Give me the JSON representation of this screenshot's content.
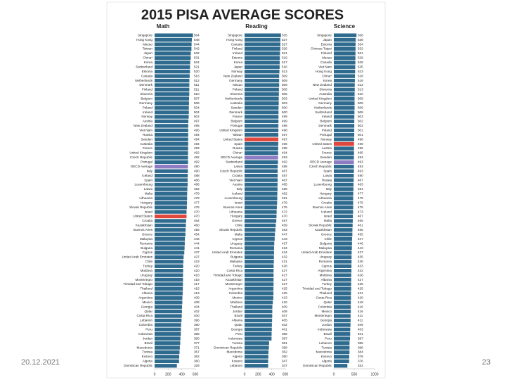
{
  "title": "2015 PISA AVERAGE SCORES",
  "date": "20.12.2021",
  "page_number": "23",
  "chart_data": [
    {
      "type": "bar",
      "orientation": "horizontal",
      "title": "Math",
      "categories": [
        "Singapore",
        "Hong Kong",
        "Macao",
        "Taiwan",
        "Japan",
        "China*",
        "Korea",
        "Switzerland",
        "Estonia",
        "Canada",
        "Netherlands",
        "Denmark",
        "Finland",
        "Slovenia",
        "Belgium",
        "Germany",
        "Poland",
        "Ireland",
        "Norway",
        "Austria",
        "New Zealand",
        "Viet Nam",
        "Russia",
        "Sweden",
        "Australia",
        "France",
        "United Kingdom",
        "Czech Republic",
        "Portugal",
        "OECD Average",
        "Italy",
        "Iceland",
        "Spain",
        "Luxembourg",
        "Latvia",
        "Malta",
        "Lithuania",
        "Hungary",
        "Slovak Republic",
        "Israel",
        "United States",
        "Croatia",
        "Kazakhstan",
        "Buenos Aires",
        "Greece",
        "Malaysia",
        "Romania",
        "Bulgaria",
        "Cyprus",
        "United Arab Emirates",
        "Chile",
        "Turkey",
        "Moldova",
        "Uruguay",
        "Montenegro",
        "Trinidad and Tobago",
        "Thailand",
        "Albania",
        "Argentina",
        "Mexico",
        "Georgia",
        "Qatar",
        "Costa Rica",
        "Lebanon",
        "Colombia",
        "Peru",
        "Indonesia",
        "Jordan",
        "Brazil",
        "Macedonia",
        "Tunisia",
        "Kosovo",
        "Algeria",
        "Dominican Republic"
      ],
      "values": [
        564,
        548,
        544,
        542,
        532,
        531,
        524,
        521,
        520,
        516,
        512,
        511,
        511,
        510,
        507,
        506,
        504,
        504,
        502,
        497,
        495,
        495,
        494,
        494,
        494,
        493,
        492,
        492,
        492,
        490,
        490,
        488,
        486,
        486,
        482,
        479,
        478,
        477,
        475,
        470,
        470,
        464,
        460,
        456,
        454,
        446,
        444,
        441,
        437,
        427,
        423,
        420,
        420,
        418,
        418,
        417,
        415,
        413,
        409,
        408,
        404,
        402,
        400,
        396,
        390,
        387,
        386,
        380,
        377,
        371,
        367,
        362,
        360,
        328
      ],
      "colors": [
        "#2f6b8e",
        "#2f6b8e",
        "#2f6b8e",
        "#2f6b8e",
        "#2f6b8e",
        "#2f6b8e",
        "#2f6b8e",
        "#2f6b8e",
        "#2f6b8e",
        "#2f6b8e",
        "#2f6b8e",
        "#2f6b8e",
        "#2f6b8e",
        "#2f6b8e",
        "#2f6b8e",
        "#2f6b8e",
        "#2f6b8e",
        "#2f6b8e",
        "#2f6b8e",
        "#2f6b8e",
        "#2f6b8e",
        "#2f6b8e",
        "#2f6b8e",
        "#2f6b8e",
        "#2f6b8e",
        "#2f6b8e",
        "#2f6b8e",
        "#2f6b8e",
        "#2f6b8e",
        "#8e7cc3",
        "#2f6b8e",
        "#2f6b8e",
        "#2f6b8e",
        "#2f6b8e",
        "#2f6b8e",
        "#2f6b8e",
        "#2f6b8e",
        "#2f6b8e",
        "#2f6b8e",
        "#2f6b8e",
        "#e0483e",
        "#2f6b8e",
        "#2f6b8e",
        "#2f6b8e",
        "#2f6b8e",
        "#2f6b8e",
        "#2f6b8e",
        "#2f6b8e",
        "#2f6b8e",
        "#2f6b8e",
        "#2f6b8e",
        "#2f6b8e",
        "#2f6b8e",
        "#2f6b8e",
        "#2f6b8e",
        "#2f6b8e",
        "#2f6b8e",
        "#2f6b8e",
        "#2f6b8e",
        "#2f6b8e",
        "#2f6b8e",
        "#2f6b8e",
        "#2f6b8e",
        "#2f6b8e",
        "#2f6b8e",
        "#2f6b8e",
        "#2f6b8e",
        "#2f6b8e",
        "#2f6b8e",
        "#2f6b8e",
        "#2f6b8e",
        "#2f6b8e",
        "#2f6b8e",
        "#2f6b8e"
      ],
      "xlim": [
        0,
        600
      ],
      "xticks": [
        0,
        200,
        400,
        600
      ]
    },
    {
      "type": "bar",
      "orientation": "horizontal",
      "title": "Reading",
      "categories": [
        "Singapore",
        "Hong Kong",
        "Canada",
        "Finland",
        "Ireland",
        "Estonia",
        "Korea",
        "Japan",
        "Norway",
        "New Zealand",
        "Germany",
        "Macao",
        "Poland",
        "Slovenia",
        "Netherlands",
        "Australia",
        "Sweden",
        "Denmark",
        "France",
        "Belgium",
        "Portugal",
        "United Kingdom",
        "Taiwan",
        "United States",
        "Spain",
        "Russia",
        "China*",
        "OECD Average",
        "Switzerland",
        "Latvia",
        "Czech Republic",
        "Croatia",
        "Viet Nam",
        "Austria",
        "Italy",
        "Iceland",
        "Luxembourg",
        "Israel",
        "Buenos Aires",
        "Lithuania",
        "Hungary",
        "Greece",
        "Chile",
        "Slovak Republic",
        "Malta",
        "Cyprus",
        "Uruguay",
        "Romania",
        "United Arab Emirates",
        "Bulgaria",
        "Malaysia",
        "Turkey",
        "Costa Rica",
        "Trinidad and Tobago",
        "Kazakhstan",
        "Montenegro",
        "Argentina",
        "Colombia",
        "Mexico",
        "Moldova",
        "Thailand",
        "Jordan",
        "Brazil",
        "Albania",
        "Qatar",
        "Georgia",
        "Peru",
        "Indonesia",
        "Tunisia",
        "Dominican Republic",
        "Macedonia",
        "Algeria",
        "Kosovo",
        "Lebanon"
      ],
      "values": [
        535,
        527,
        527,
        526,
        521,
        519,
        517,
        516,
        513,
        509,
        509,
        509,
        506,
        505,
        503,
        503,
        500,
        500,
        499,
        499,
        498,
        498,
        497,
        497,
        496,
        495,
        494,
        493,
        492,
        488,
        487,
        487,
        487,
        485,
        485,
        482,
        481,
        479,
        475,
        472,
        470,
        467,
        459,
        453,
        447,
        443,
        437,
        434,
        434,
        432,
        431,
        428,
        427,
        427,
        427,
        427,
        425,
        425,
        423,
        416,
        409,
        408,
        407,
        405,
        402,
        401,
        398,
        397,
        361,
        358,
        352,
        350,
        347,
        347
      ],
      "colors": [
        "#2f6b8e",
        "#2f6b8e",
        "#2f6b8e",
        "#2f6b8e",
        "#2f6b8e",
        "#2f6b8e",
        "#2f6b8e",
        "#2f6b8e",
        "#2f6b8e",
        "#2f6b8e",
        "#2f6b8e",
        "#2f6b8e",
        "#2f6b8e",
        "#2f6b8e",
        "#2f6b8e",
        "#2f6b8e",
        "#2f6b8e",
        "#2f6b8e",
        "#2f6b8e",
        "#2f6b8e",
        "#2f6b8e",
        "#2f6b8e",
        "#2f6b8e",
        "#e0483e",
        "#2f6b8e",
        "#2f6b8e",
        "#2f6b8e",
        "#8e7cc3",
        "#2f6b8e",
        "#2f6b8e",
        "#2f6b8e",
        "#2f6b8e",
        "#2f6b8e",
        "#2f6b8e",
        "#2f6b8e",
        "#2f6b8e",
        "#2f6b8e",
        "#2f6b8e",
        "#2f6b8e",
        "#2f6b8e",
        "#2f6b8e",
        "#2f6b8e",
        "#2f6b8e",
        "#2f6b8e",
        "#2f6b8e",
        "#2f6b8e",
        "#2f6b8e",
        "#2f6b8e",
        "#2f6b8e",
        "#2f6b8e",
        "#2f6b8e",
        "#2f6b8e",
        "#2f6b8e",
        "#2f6b8e",
        "#2f6b8e",
        "#2f6b8e",
        "#2f6b8e",
        "#2f6b8e",
        "#2f6b8e",
        "#2f6b8e",
        "#2f6b8e",
        "#2f6b8e",
        "#2f6b8e",
        "#2f6b8e",
        "#2f6b8e",
        "#2f6b8e",
        "#2f6b8e",
        "#2f6b8e",
        "#2f6b8e",
        "#2f6b8e",
        "#2f6b8e",
        "#2f6b8e",
        "#2f6b8e",
        "#2f6b8e"
      ],
      "xlim": [
        0,
        600
      ],
      "xticks": [
        0,
        200,
        400,
        600
      ]
    },
    {
      "type": "bar",
      "orientation": "horizontal",
      "title": "Science",
      "categories": [
        "Singapore",
        "Japan",
        "Estonia",
        "Chinese Taipei",
        "Finland",
        "Macao",
        "Canada",
        "Viet Nam",
        "Hong Kong",
        "China*",
        "Korea",
        "New Zealand",
        "Slovenia",
        "Australia",
        "United Kingdom",
        "Germany",
        "Netherlands",
        "Switzerland",
        "Ireland",
        "Belgium",
        "Denmark",
        "Poland",
        "Portugal",
        "Norway",
        "United States",
        "Austria",
        "France",
        "Sweden",
        "OECD Average",
        "Czech Republic",
        "Spain",
        "Latvia",
        "Russia",
        "Luxembourg",
        "Italy",
        "Hungary",
        "Lithuania",
        "Croatia",
        "Buenos Aires",
        "Iceland",
        "Israel",
        "Malta",
        "Slovak Republic",
        "Kazakhstan",
        "Greece",
        "Chile",
        "Bulgaria",
        "Malaysia",
        "United Arab Emirates",
        "Uruguay",
        "Romania",
        "Cyprus",
        "Argentina",
        "Moldova",
        "Albania",
        "Turkey",
        "Trinidad and Tobago",
        "Thailand",
        "Costa Rica",
        "Qatar",
        "Colombia",
        "Mexico",
        "Montenegro",
        "Georgia",
        "Jordan",
        "Indonesia",
        "Brazil",
        "Peru",
        "Lebanon",
        "Tunisia",
        "Macedonia",
        "Kosovo",
        "Algeria",
        "Dominican Republic"
      ],
      "values": [
        556,
        538,
        534,
        532,
        531,
        529,
        528,
        525,
        523,
        518,
        516,
        513,
        513,
        510,
        509,
        509,
        509,
        506,
        503,
        502,
        502,
        501,
        501,
        498,
        496,
        495,
        495,
        493,
        493,
        493,
        493,
        490,
        487,
        483,
        481,
        477,
        475,
        475,
        475,
        473,
        467,
        465,
        461,
        456,
        455,
        447,
        446,
        443,
        437,
        435,
        435,
        433,
        432,
        428,
        427,
        425,
        425,
        421,
        420,
        418,
        416,
        416,
        411,
        411,
        409,
        403,
        401,
        397,
        386,
        386,
        384,
        378,
        376,
        332
      ],
      "colors": [
        "#2f6b8e",
        "#2f6b8e",
        "#2f6b8e",
        "#2f6b8e",
        "#2f6b8e",
        "#2f6b8e",
        "#2f6b8e",
        "#2f6b8e",
        "#2f6b8e",
        "#2f6b8e",
        "#2f6b8e",
        "#2f6b8e",
        "#2f6b8e",
        "#2f6b8e",
        "#2f6b8e",
        "#2f6b8e",
        "#2f6b8e",
        "#2f6b8e",
        "#2f6b8e",
        "#2f6b8e",
        "#2f6b8e",
        "#2f6b8e",
        "#2f6b8e",
        "#2f6b8e",
        "#e0483e",
        "#2f6b8e",
        "#2f6b8e",
        "#2f6b8e",
        "#8e7cc3",
        "#2f6b8e",
        "#2f6b8e",
        "#2f6b8e",
        "#2f6b8e",
        "#2f6b8e",
        "#2f6b8e",
        "#2f6b8e",
        "#2f6b8e",
        "#2f6b8e",
        "#2f6b8e",
        "#2f6b8e",
        "#2f6b8e",
        "#2f6b8e",
        "#2f6b8e",
        "#2f6b8e",
        "#2f6b8e",
        "#2f6b8e",
        "#2f6b8e",
        "#2f6b8e",
        "#2f6b8e",
        "#2f6b8e",
        "#2f6b8e",
        "#2f6b8e",
        "#2f6b8e",
        "#2f6b8e",
        "#2f6b8e",
        "#2f6b8e",
        "#2f6b8e",
        "#2f6b8e",
        "#2f6b8e",
        "#2f6b8e",
        "#2f6b8e",
        "#2f6b8e",
        "#2f6b8e",
        "#2f6b8e",
        "#2f6b8e",
        "#2f6b8e",
        "#2f6b8e",
        "#2f6b8e",
        "#2f6b8e",
        "#2f6b8e",
        "#2f6b8e",
        "#2f6b8e",
        "#2f6b8e",
        "#2f6b8e"
      ],
      "xlim": [
        0,
        1000
      ],
      "xticks": [
        0,
        500,
        1000
      ]
    }
  ]
}
